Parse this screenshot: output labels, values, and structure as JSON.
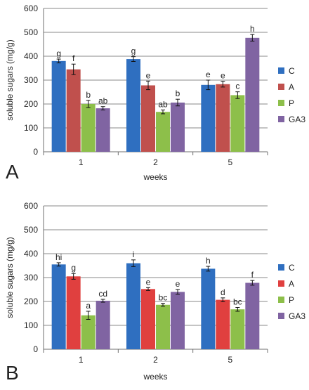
{
  "chart_data": [
    {
      "type": "bar",
      "panel_label": "A",
      "title": "",
      "xlabel": "weeks",
      "ylabel": "soluble sugars (mg/g)",
      "ylim": [
        0,
        600
      ],
      "yticks": [
        0,
        100,
        200,
        300,
        400,
        500,
        600
      ],
      "categories": [
        "1",
        "2",
        "5"
      ],
      "grid": true,
      "legend_position": "right",
      "series": [
        {
          "name": "C",
          "color": "#2f6fc0",
          "values": [
            380,
            388,
            280
          ],
          "errors": [
            8,
            10,
            20
          ],
          "labels": [
            "g",
            "g",
            "e"
          ]
        },
        {
          "name": "A",
          "color": "#c0504d",
          "values": [
            345,
            278,
            283
          ],
          "errors": [
            22,
            18,
            12
          ],
          "labels": [
            "f",
            "e",
            "e"
          ]
        },
        {
          "name": "P",
          "color": "#8dbf4a",
          "values": [
            200,
            167,
            237
          ],
          "errors": [
            15,
            8,
            14
          ],
          "labels": [
            "b",
            "ab",
            "c"
          ]
        },
        {
          "name": "GA3",
          "color": "#8064a2",
          "values": [
            182,
            206,
            477
          ],
          "errors": [
            7,
            14,
            14
          ],
          "labels": [
            "ab",
            "b",
            "h"
          ]
        }
      ]
    },
    {
      "type": "bar",
      "panel_label": "B",
      "title": "",
      "xlabel": "weeks",
      "ylabel": "soluble sugars (mg/g)",
      "ylim": [
        0,
        600
      ],
      "yticks": [
        0,
        100,
        200,
        300,
        400,
        500,
        600
      ],
      "categories": [
        "1",
        "2",
        "5"
      ],
      "grid": true,
      "legend_position": "right",
      "series": [
        {
          "name": "C",
          "color": "#2f6fc0",
          "values": [
            355,
            360,
            337
          ],
          "errors": [
            7,
            14,
            10
          ],
          "labels": [
            "hi",
            "i",
            "h"
          ]
        },
        {
          "name": "A",
          "color": "#e0403f",
          "values": [
            305,
            252,
            207
          ],
          "errors": [
            12,
            6,
            8
          ],
          "labels": [
            "g",
            "e",
            "d"
          ]
        },
        {
          "name": "P",
          "color": "#8dbf4a",
          "values": [
            142,
            186,
            167
          ],
          "errors": [
            17,
            6,
            8
          ],
          "labels": [
            "a",
            "bc",
            "bc"
          ]
        },
        {
          "name": "GA3",
          "color": "#8064a2",
          "values": [
            203,
            240,
            278
          ],
          "errors": [
            6,
            10,
            10
          ],
          "labels": [
            "cd",
            "e",
            "f"
          ]
        }
      ]
    }
  ]
}
